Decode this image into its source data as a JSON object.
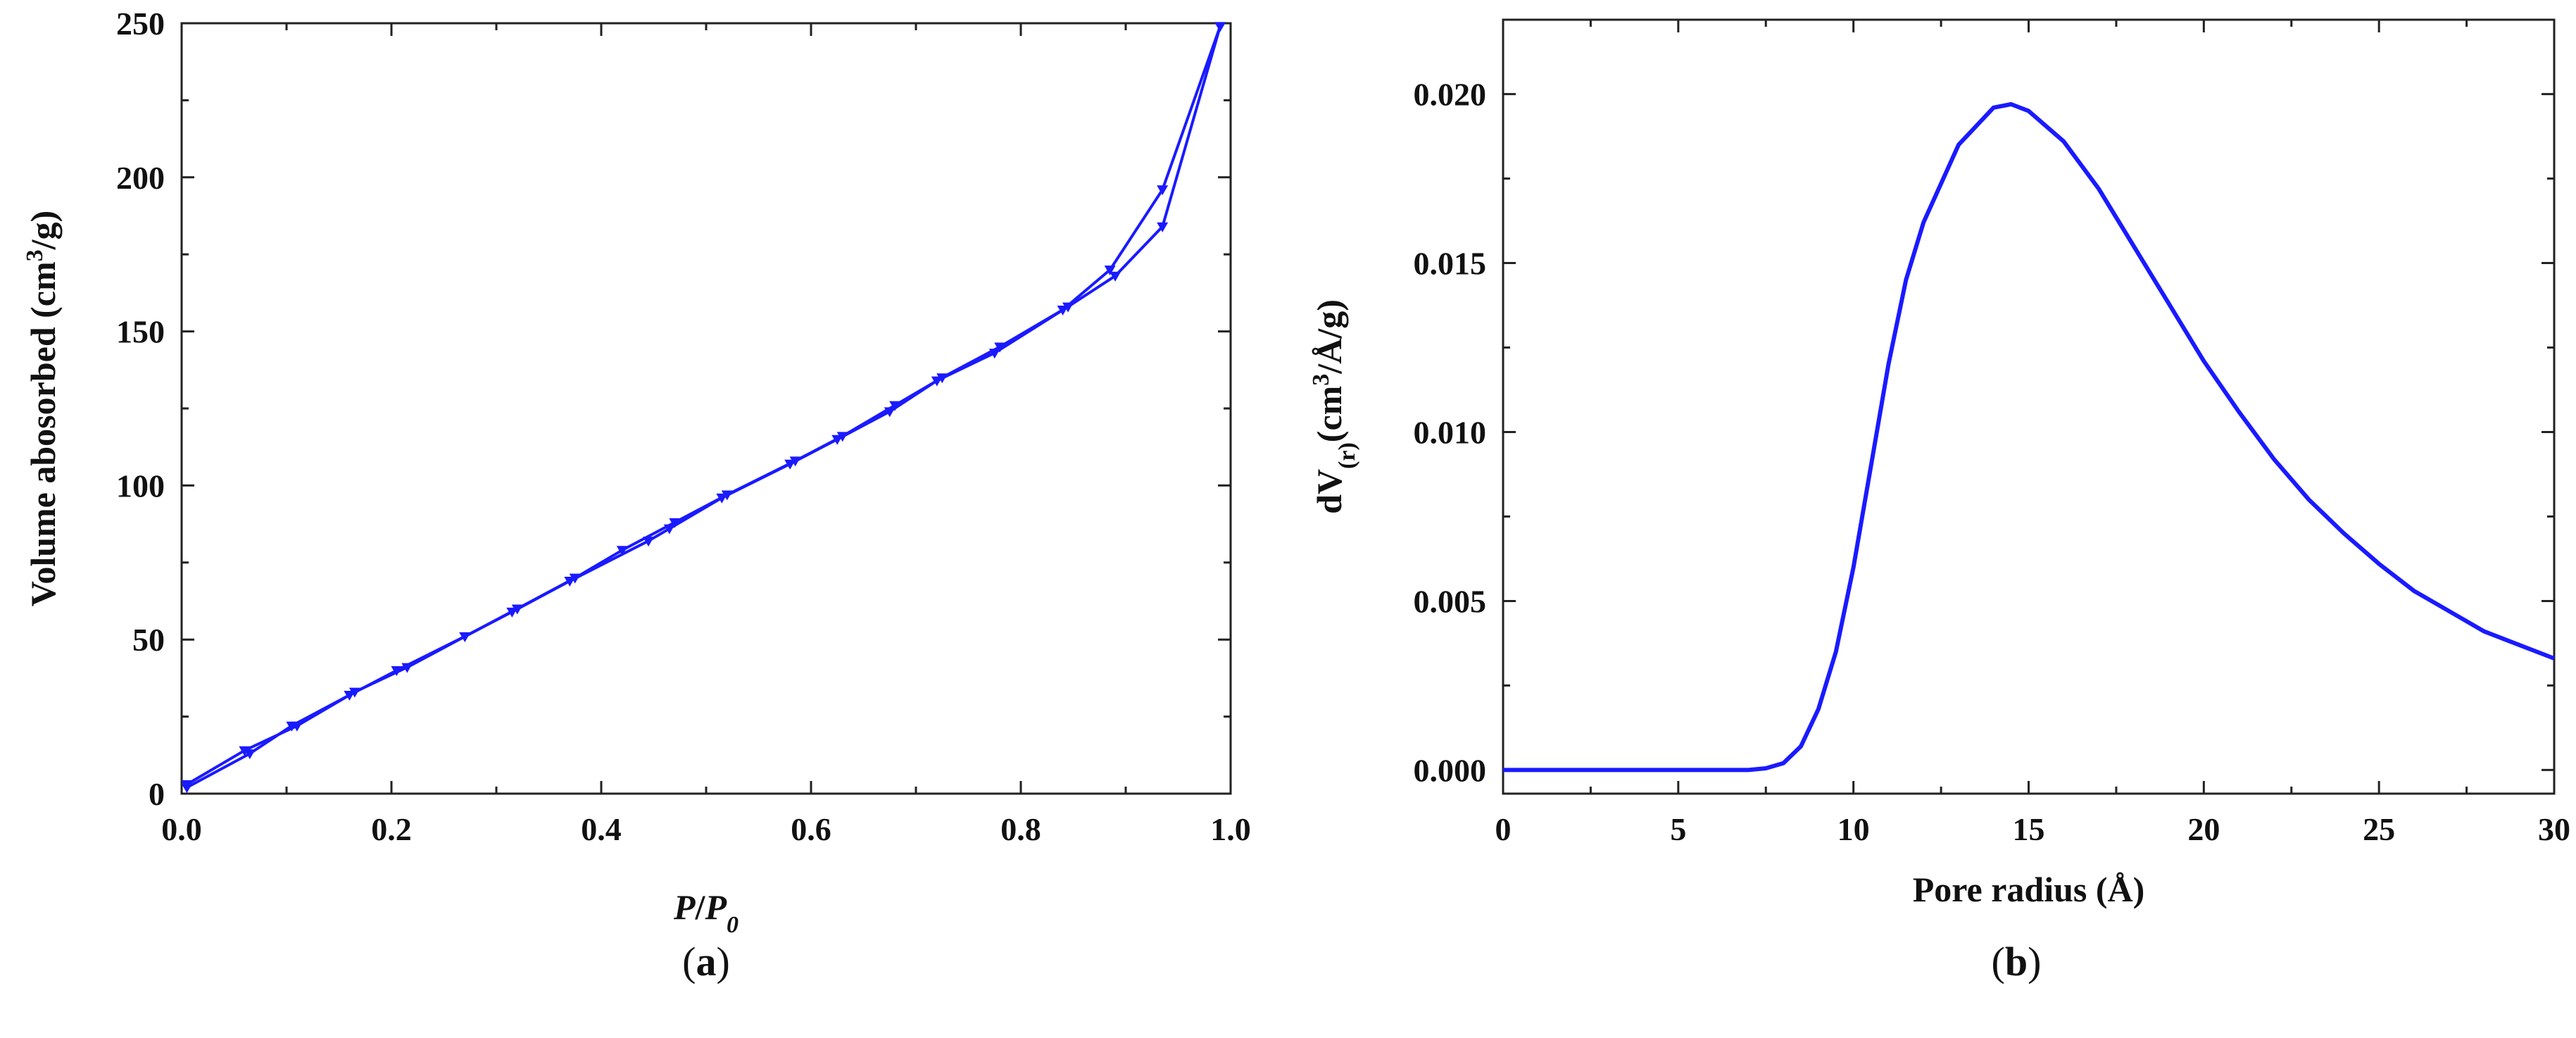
{
  "colors": {
    "line": "#1a1aff",
    "axis": "#222222"
  },
  "chart_data": [
    {
      "panel": "a",
      "caption": [
        "(",
        "a",
        ")"
      ],
      "type": "line",
      "xlabel_parts": [
        {
          "text": "P",
          "italic": true,
          "sub": false
        },
        {
          "text": "/",
          "italic": false,
          "sub": false
        },
        {
          "text": "P",
          "italic": true,
          "sub": false
        },
        {
          "text": "0",
          "italic": true,
          "sub": true
        }
      ],
      "ylabel_parts": [
        {
          "text": "Volume abosorbed (cm",
          "sup": false
        },
        {
          "text": "3",
          "sup": true
        },
        {
          "text": "/g)",
          "sup": false
        }
      ],
      "xlim": [
        0,
        1.0
      ],
      "ylim": [
        0,
        250
      ],
      "xticks": [
        "0.0",
        "0.2",
        "0.4",
        "0.6",
        "0.8",
        "1.0"
      ],
      "yticks": [
        "0",
        "50",
        "100",
        "150",
        "200",
        "250"
      ],
      "grid": false,
      "marker": "triangle-down",
      "series": [
        {
          "x": [
            0.005,
            0.06,
            0.11,
            0.165,
            0.215,
            0.27,
            0.32,
            0.375,
            0.42,
            0.47,
            0.52,
            0.585,
            0.63,
            0.68,
            0.725,
            0.78,
            0.84,
            0.885,
            0.935,
            0.99
          ],
          "y": [
            3,
            14,
            22,
            33,
            41,
            51,
            60,
            70,
            79,
            88,
            97,
            108,
            116,
            126,
            135,
            145,
            157,
            170,
            196,
            249
          ]
        },
        {
          "x": [
            0.005,
            0.065,
            0.105,
            0.16,
            0.205,
            0.27,
            0.315,
            0.37,
            0.445,
            0.465,
            0.515,
            0.58,
            0.625,
            0.675,
            0.72,
            0.775,
            0.845,
            0.89,
            0.935,
            0.99
          ],
          "y": [
            2,
            13,
            22,
            32,
            40,
            51,
            59,
            69,
            82,
            86,
            96,
            107,
            115,
            124,
            134,
            143,
            158,
            168,
            184,
            249
          ]
        }
      ]
    },
    {
      "panel": "b",
      "caption": [
        "(",
        "b",
        ")"
      ],
      "type": "line",
      "xlabel": "Pore radius (Å)",
      "ylabel_parts": [
        {
          "text": "dV",
          "sup": false,
          "sub": false
        },
        {
          "text": "(r)",
          "sup": false,
          "sub": true
        },
        {
          "text": "(cm",
          "sup": false,
          "sub": false
        },
        {
          "text": "3",
          "sup": true,
          "sub": false
        },
        {
          "text": "/Å/g)",
          "sup": false,
          "sub": false
        }
      ],
      "xlim": [
        0,
        30
      ],
      "ylim": [
        -0.0007,
        0.0222
      ],
      "xticks": [
        "0",
        "5",
        "10",
        "15",
        "20",
        "25",
        "30"
      ],
      "yticks": [
        "0.000",
        "0.005",
        "0.010",
        "0.015",
        "0.020"
      ],
      "grid": false,
      "series": [
        {
          "x": [
            0,
            7,
            7.5,
            8,
            8.5,
            9,
            9.5,
            10,
            10.5,
            11,
            11.5,
            12,
            13,
            14,
            14.5,
            15,
            16,
            17,
            18,
            19,
            20,
            21,
            22,
            23,
            24,
            25,
            26,
            27,
            28,
            29,
            30
          ],
          "y": [
            0,
            0,
            5e-05,
            0.0002,
            0.0007,
            0.0018,
            0.0035,
            0.006,
            0.009,
            0.012,
            0.0145,
            0.0162,
            0.0185,
            0.0196,
            0.0197,
            0.0195,
            0.0186,
            0.0172,
            0.0155,
            0.0138,
            0.0121,
            0.0106,
            0.0092,
            0.008,
            0.007,
            0.0061,
            0.0053,
            0.0047,
            0.0041,
            0.0037,
            0.0033
          ]
        }
      ]
    }
  ]
}
